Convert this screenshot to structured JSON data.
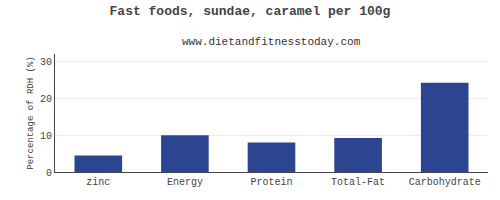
{
  "chart_data": {
    "type": "bar",
    "title": "Fast foods, sundae, caramel per 100g",
    "subtitle": "www.dietandfitnesstoday.com",
    "categories": [
      "zinc",
      "Energy",
      "Protein",
      "Total-Fat",
      "Carbohydrate"
    ],
    "values": [
      4.5,
      10.0,
      8.0,
      9.2,
      24.2
    ],
    "color": "#2b4590",
    "ylabel": "Percentage of RDH (%)",
    "ylim": [
      0,
      32
    ],
    "yticks": [
      0,
      10,
      20,
      30
    ],
    "grid": true
  }
}
